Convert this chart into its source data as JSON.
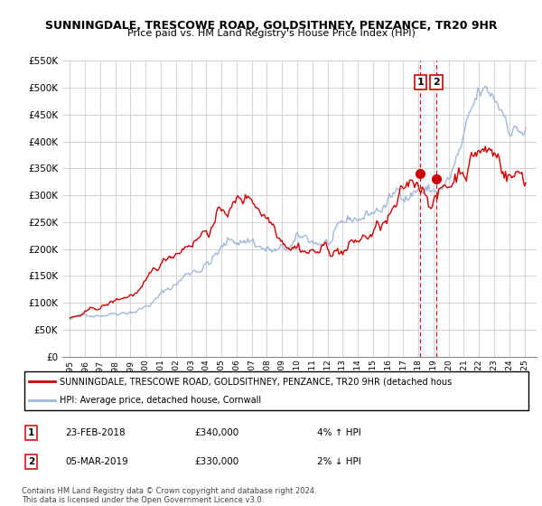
{
  "title": "SUNNINGDALE, TRESCOWE ROAD, GOLDSITHNEY, PENZANCE, TR20 9HR",
  "subtitle": "Price paid vs. HM Land Registry's House Price Index (HPI)",
  "ylim": [
    0,
    550000
  ],
  "yticks": [
    0,
    50000,
    100000,
    150000,
    200000,
    250000,
    300000,
    350000,
    400000,
    450000,
    500000,
    550000
  ],
  "ytick_labels": [
    "£0",
    "£50K",
    "£100K",
    "£150K",
    "£200K",
    "£250K",
    "£300K",
    "£350K",
    "£400K",
    "£450K",
    "£500K",
    "£550K"
  ],
  "hpi_color": "#a0b8d8",
  "price_color": "#cc0000",
  "dashed_line_color": "#cc0000",
  "fill_color": "#ddeeff",
  "grid_color": "#cccccc",
  "bg_color": "#ffffff",
  "legend_label_property": "SUNNINGDALE, TRESCOWE ROAD, GOLDSITHNEY, PENZANCE, TR20 9HR (detached hous",
  "legend_label_hpi": "HPI: Average price, detached house, Cornwall",
  "annotation1_label": "1",
  "annotation1_date": "23-FEB-2018",
  "annotation1_price": "£340,000",
  "annotation1_hpi": "4% ↑ HPI",
  "annotation2_label": "2",
  "annotation2_date": "05-MAR-2019",
  "annotation2_price": "£330,000",
  "annotation2_hpi": "2% ↓ HPI",
  "copyright_text": "Contains HM Land Registry data © Crown copyright and database right 2024.\nThis data is licensed under the Open Government Licence v3.0.",
  "sale1_year": 2018.12,
  "sale1_y": 340000,
  "sale2_year": 2019.18,
  "sale2_y": 330000,
  "xlim_low": 1994.5,
  "xlim_high": 2025.8
}
